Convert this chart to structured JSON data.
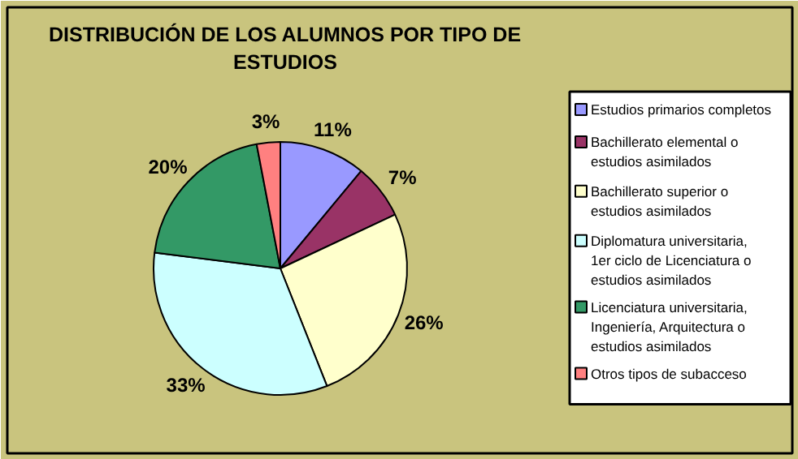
{
  "chart_data": {
    "type": "pie",
    "title": "DISTRIBUCIÓN DE LOS ALUMNOS POR TIPO DE ESTUDIOS",
    "categories": [
      "Estudios primarios completos",
      "Bachillerato elemental o estudios asimilados",
      "Bachillerato superior o estudios asimilados",
      "Diplomatura universitaria, 1er ciclo de Licenciatura o estudios asimilados",
      "Licenciatura universitaria, Ingeniería, Arquitectura o estudios asimilados",
      "Otros tipos de subacceso"
    ],
    "values": [
      11,
      7,
      26,
      33,
      20,
      3
    ],
    "value_labels": [
      "11%",
      "7%",
      "26%",
      "33%",
      "20%",
      "3%"
    ],
    "colors": [
      "#9999ff",
      "#993366",
      "#ffffcc",
      "#ccffff",
      "#339966",
      "#ff8080"
    ],
    "legend": "right"
  }
}
